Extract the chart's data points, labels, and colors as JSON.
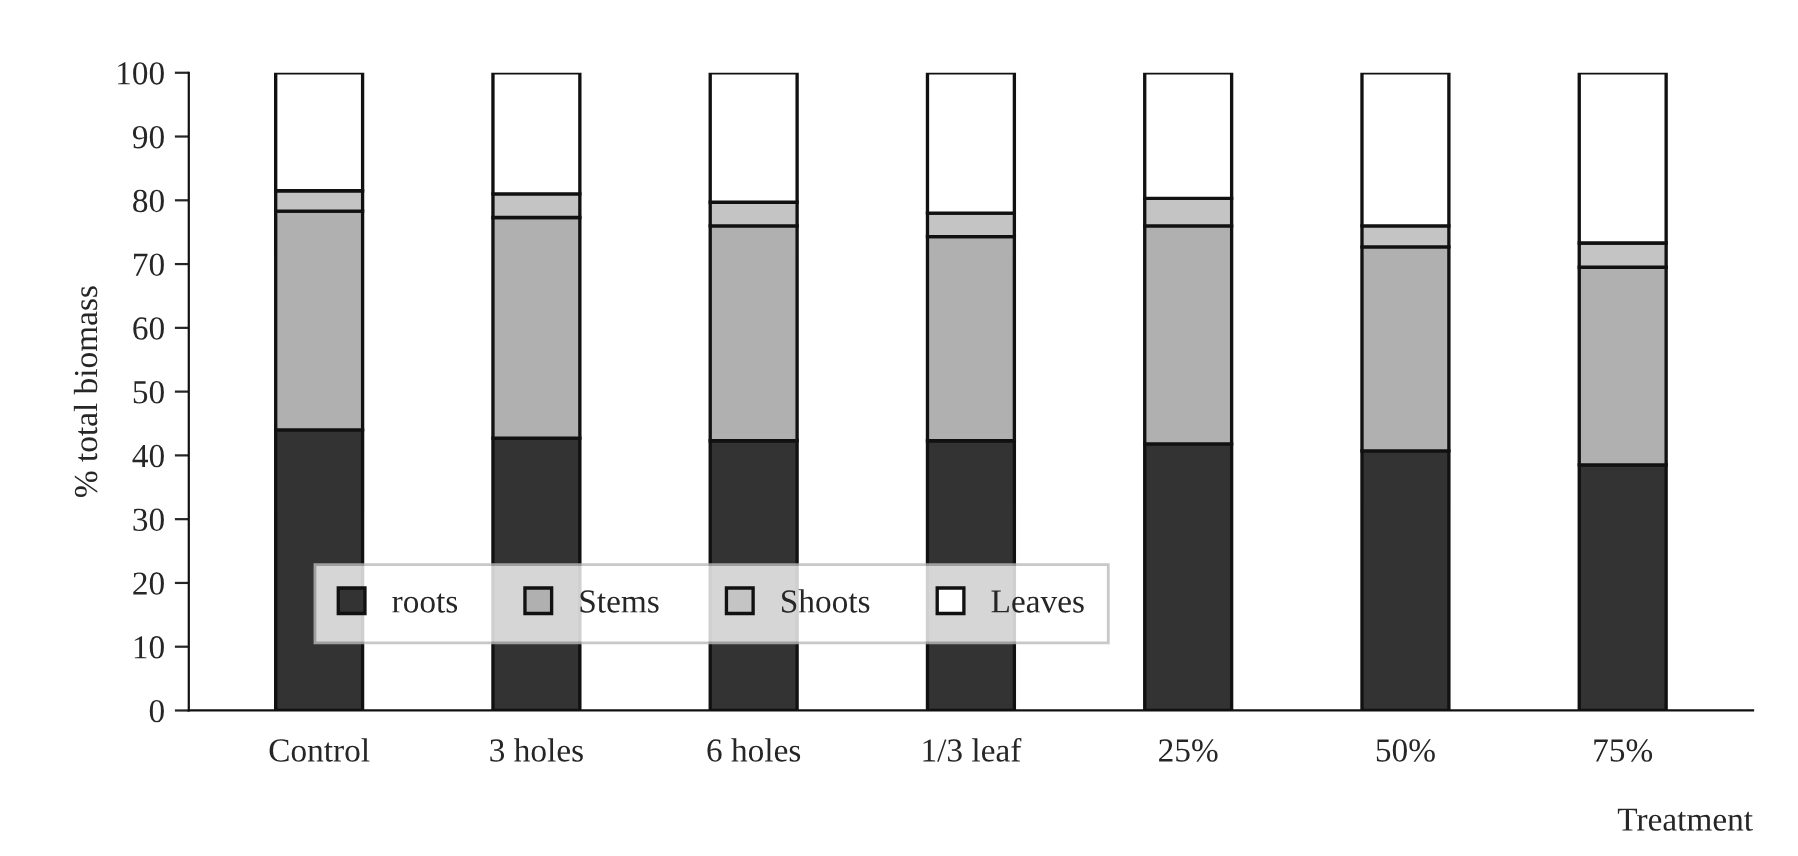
{
  "chart_data": {
    "type": "bar",
    "stacked": true,
    "categories": [
      "Control",
      "3 holes",
      "6 holes",
      "1/3 leaf",
      "25%",
      "50%",
      "75%"
    ],
    "series": [
      {
        "name": "roots",
        "color": "#333333",
        "values": [
          44.0,
          42.7,
          42.3,
          42.3,
          41.8,
          40.7,
          38.5
        ]
      },
      {
        "name": "Stems",
        "color": "#b0b0b0",
        "values": [
          34.3,
          34.6,
          33.7,
          32.0,
          34.2,
          32.0,
          31.0
        ]
      },
      {
        "name": "Shoots",
        "color": "#c4c4c4",
        "values": [
          3.2,
          3.7,
          3.7,
          3.7,
          4.3,
          3.3,
          3.8
        ]
      },
      {
        "name": "Leaves",
        "color": "#ffffff",
        "values": [
          18.5,
          19.0,
          20.3,
          22.0,
          19.7,
          24.0,
          26.7
        ]
      }
    ],
    "xlabel": "Treatment",
    "ylabel": "% total biomass",
    "ylim": [
      0,
      100
    ],
    "yticks": [
      0,
      10,
      20,
      30,
      40,
      50,
      60,
      70,
      80,
      90,
      100
    ],
    "legend": "bottom left",
    "grid": false
  }
}
